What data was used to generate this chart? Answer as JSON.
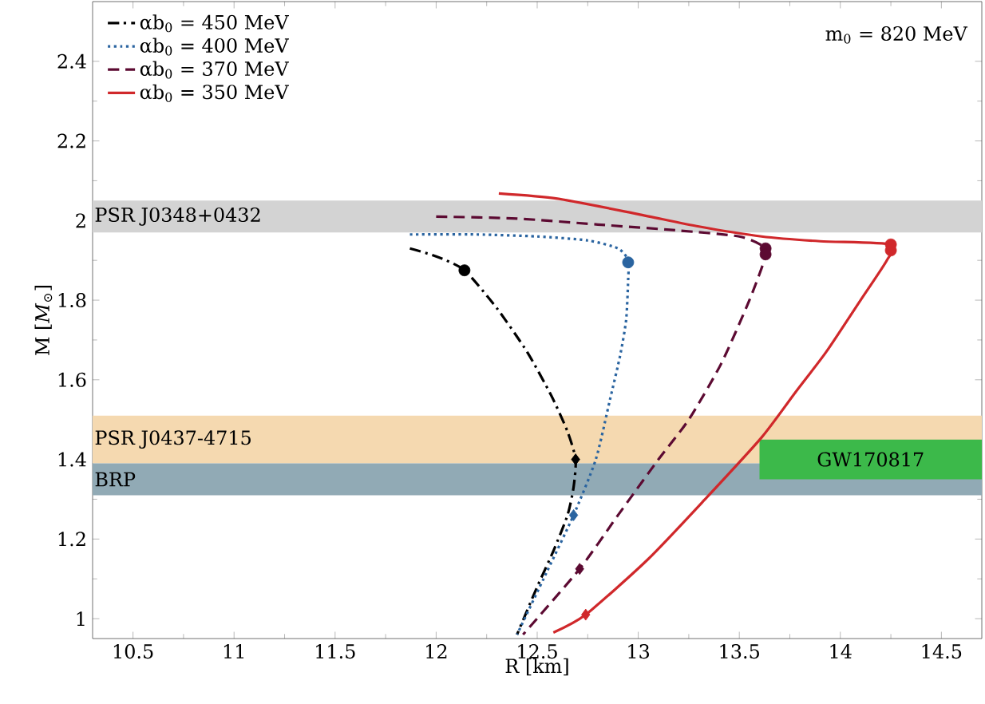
{
  "chart_data": {
    "type": "line",
    "xlabel": "R [km]",
    "ylabel": "M [*M*$_{⊙}$]",
    "xlim": [
      10.3,
      14.7
    ],
    "ylim": [
      0.95,
      2.55
    ],
    "xticks": [
      10.5,
      11,
      11.5,
      12,
      12.5,
      13,
      13.5,
      14,
      14.5
    ],
    "yticks": [
      1,
      1.2,
      1.4,
      1.6,
      1.8,
      2,
      2.2,
      2.4
    ],
    "legend": "top left",
    "grid": false,
    "series": [
      {
        "name": "αb$_{0}$ = 450 MeV",
        "color": "#000000",
        "line_style": "dashdot",
        "x": [
          11.87,
          12.0,
          12.14,
          12.3,
          12.45,
          12.57,
          12.65,
          12.69,
          12.68,
          12.65,
          12.58,
          12.5,
          12.4
        ],
        "values": [
          1.93,
          1.91,
          1.875,
          1.78,
          1.67,
          1.56,
          1.47,
          1.4,
          1.33,
          1.26,
          1.17,
          1.08,
          0.96
        ]
      },
      {
        "name": "αb$_{0}$ = 400 MeV",
        "color": "#2a64a0",
        "line_style": "dotted",
        "x": [
          11.87,
          12.2,
          12.5,
          12.75,
          12.9,
          12.95,
          12.95,
          12.94,
          12.91,
          12.86,
          12.79,
          12.68,
          12.55,
          12.4
        ],
        "values": [
          1.965,
          1.965,
          1.96,
          1.95,
          1.93,
          1.9,
          1.85,
          1.75,
          1.66,
          1.55,
          1.4,
          1.26,
          1.12,
          0.96
        ]
      },
      {
        "name": "αb$_{0}$ = 370 MeV",
        "color": "#5c0a32",
        "line_style": "dashed",
        "x": [
          12.0,
          12.4,
          12.8,
          13.2,
          13.5,
          13.62,
          13.63,
          13.55,
          13.41,
          13.25,
          13.1,
          12.9,
          12.71,
          12.43
        ],
        "values": [
          2.01,
          2.005,
          1.99,
          1.975,
          1.96,
          1.935,
          1.91,
          1.8,
          1.64,
          1.5,
          1.4,
          1.26,
          1.125,
          0.96
        ]
      },
      {
        "name": "αb$_{0}$ = 350 MeV",
        "color": "#d0282b",
        "line_style": "solid",
        "x": [
          12.31,
          12.6,
          13.0,
          13.3,
          13.61,
          13.9,
          14.25,
          14.23,
          14.1,
          13.93,
          13.78,
          13.61,
          13.34,
          13.05,
          12.74,
          12.58
        ],
        "values": [
          2.068,
          2.055,
          2.016,
          1.985,
          1.96,
          1.948,
          1.94,
          1.9,
          1.8,
          1.67,
          1.57,
          1.455,
          1.305,
          1.15,
          1.01,
          0.965
        ]
      },
      {
        "type": "scatter",
        "marker": "circle",
        "colors": [
          "#000000",
          "#2a64a0",
          "#5c0a32",
          "#5c0a32",
          "#d0282b",
          "#d0282b"
        ],
        "x": [
          12.14,
          12.95,
          13.63,
          13.63,
          14.25,
          14.25
        ],
        "values": [
          1.875,
          1.895,
          1.93,
          1.915,
          1.94,
          1.925
        ]
      },
      {
        "type": "scatter",
        "marker": "diamond",
        "colors": [
          "#000000",
          "#2a64a0",
          "#5c0a32",
          "#d0282b"
        ],
        "x": [
          12.69,
          12.68,
          12.71,
          12.74
        ],
        "values": [
          1.4,
          1.26,
          1.125,
          1.01
        ]
      }
    ],
    "bands": [
      {
        "axis": "y",
        "from": 1.97,
        "to": 2.05,
        "label": "PSR J0348+0432",
        "color": "#d3d3d3"
      },
      {
        "axis": "y",
        "from": 1.39,
        "to": 1.51,
        "label": "PSR J0437-4715",
        "color": "#f5d9b0"
      },
      {
        "axis": "y",
        "from": 1.31,
        "to": 1.39,
        "label": "BRP",
        "color": "#91aab5"
      },
      {
        "axis": "y",
        "from": 1.35,
        "to": 1.45,
        "color": "#3cb94a"
      }
    ],
    "annotations": [
      "m$_{0}$ = 820 MeV",
      {
        "text": "GW170817",
        "x": 14.15,
        "y": 1.4
      }
    ]
  }
}
